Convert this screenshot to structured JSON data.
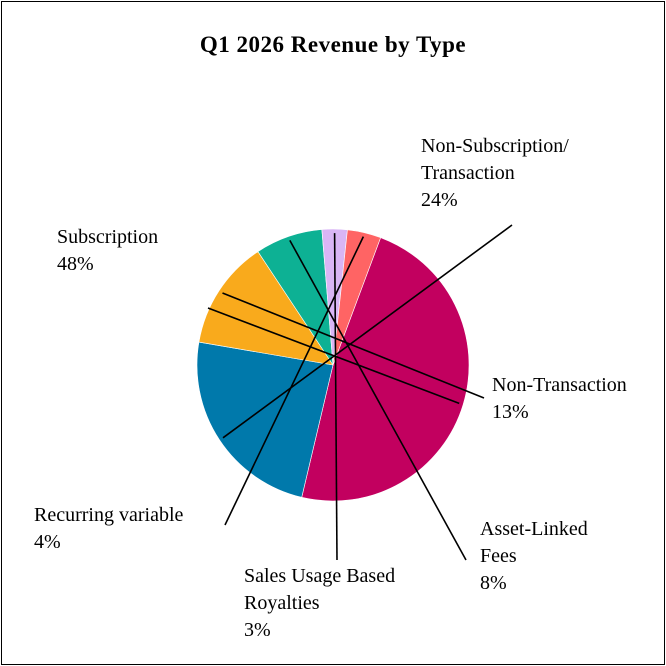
{
  "chart_data": {
    "type": "pie",
    "title": "Q1 2026 Revenue by Type",
    "slices": [
      {
        "label_lines": [
          "Subscription"
        ],
        "percent_label": "48%",
        "value": 48,
        "color": "#C2005F"
      },
      {
        "label_lines": [
          "Non-Subscription/",
          "Transaction"
        ],
        "percent_label": "24%",
        "value": 24,
        "color": "#0079AB"
      },
      {
        "label_lines": [
          "Non-Transaction"
        ],
        "percent_label": "13%",
        "value": 13,
        "color": "#F9AA1C"
      },
      {
        "label_lines": [
          "Asset-Linked",
          "Fees"
        ],
        "percent_label": "8%",
        "value": 8,
        "color": "#0DB194"
      },
      {
        "label_lines": [
          "Sales Usage Based",
          "Royalties"
        ],
        "percent_label": "3%",
        "value": 3,
        "color": "#D9B5F5"
      },
      {
        "label_lines": [
          "Recurring variable"
        ],
        "percent_label": "4%",
        "value": 4,
        "color": "#FF6464"
      }
    ]
  }
}
